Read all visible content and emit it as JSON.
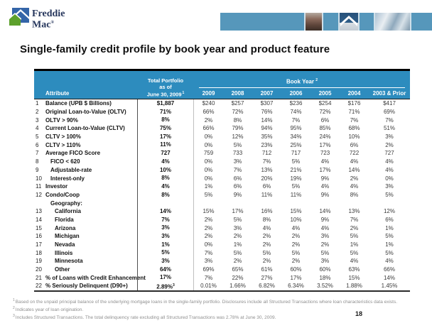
{
  "logo": {
    "line1": "Freddie",
    "line2": "Mac",
    "reg": "®"
  },
  "title": "Single-family credit profile by book year and product feature",
  "colors": {
    "table_header_blue": "#2d8cbe",
    "banner_blue": "#5697bb",
    "logo_blue": "#3465a8",
    "logo_green": "#5da02c"
  },
  "table": {
    "attribute_header": "Attribute",
    "portfolio_header_lines": [
      "Total Portfolio",
      "as of",
      "June 30, 2009"
    ],
    "portfolio_header_sup": "1",
    "book_year_label": "Book Year",
    "book_year_sup": "2",
    "year_columns": [
      "2009",
      "2008",
      "2007",
      "2006",
      "2005",
      "2004",
      "2003 & Prior"
    ],
    "rows": [
      {
        "num": "1",
        "label": "Balance (UPB $ Billions)",
        "indent": 0,
        "portfolio": "$1,887",
        "sup": "",
        "values": [
          "$240",
          "$257",
          "$307",
          "$236",
          "$254",
          "$176",
          "$417"
        ]
      },
      {
        "num": "2",
        "label": "Original Loan-to-Value (OLTV)",
        "indent": 0,
        "portfolio": "71%",
        "sup": "",
        "values": [
          "66%",
          "72%",
          "76%",
          "74%",
          "72%",
          "71%",
          "69%"
        ]
      },
      {
        "num": "3",
        "label": "OLTV > 90%",
        "indent": 0,
        "portfolio": "8%",
        "sup": "",
        "values": [
          "2%",
          "8%",
          "14%",
          "7%",
          "6%",
          "7%",
          "7%"
        ]
      },
      {
        "num": "4",
        "label": "Current Loan-to-Value (CLTV)",
        "indent": 0,
        "portfolio": "75%",
        "sup": "",
        "values": [
          "66%",
          "79%",
          "94%",
          "95%",
          "85%",
          "68%",
          "51%"
        ]
      },
      {
        "num": "5",
        "label": "CLTV > 100%",
        "indent": 0,
        "portfolio": "17%",
        "sup": "",
        "values": [
          "0%",
          "12%",
          "35%",
          "34%",
          "24%",
          "10%",
          "3%"
        ]
      },
      {
        "num": "6",
        "label": "CLTV > 110%",
        "indent": 0,
        "portfolio": "11%",
        "sup": "",
        "values": [
          "0%",
          "5%",
          "23%",
          "25%",
          "17%",
          "6%",
          "2%"
        ]
      },
      {
        "num": "7",
        "label": "Average FICO Score",
        "indent": 0,
        "portfolio": "727",
        "sup": "",
        "values": [
          "759",
          "733",
          "712",
          "717",
          "723",
          "722",
          "727"
        ]
      },
      {
        "num": "8",
        "label": "FICO < 620",
        "indent": 1,
        "portfolio": "4%",
        "sup": "",
        "values": [
          "0%",
          "3%",
          "7%",
          "5%",
          "4%",
          "4%",
          "4%"
        ]
      },
      {
        "num": "9",
        "label": "Adjustable-rate",
        "indent": 1,
        "portfolio": "10%",
        "sup": "",
        "values": [
          "0%",
          "7%",
          "13%",
          "21%",
          "17%",
          "14%",
          "4%"
        ]
      },
      {
        "num": "10",
        "label": "Interest-only",
        "indent": 1,
        "portfolio": "8%",
        "sup": "",
        "values": [
          "0%",
          "6%",
          "20%",
          "19%",
          "9%",
          "2%",
          "0%"
        ]
      },
      {
        "num": "11",
        "label": "Investor",
        "indent": 0,
        "portfolio": "4%",
        "sup": "",
        "values": [
          "1%",
          "6%",
          "6%",
          "5%",
          "4%",
          "4%",
          "3%"
        ]
      },
      {
        "num": "12",
        "label": "Condo/Coop",
        "indent": 0,
        "portfolio": "8%",
        "sup": "",
        "values": [
          "5%",
          "9%",
          "11%",
          "11%",
          "9%",
          "8%",
          "5%"
        ]
      },
      {
        "num": "",
        "label": "Geography:",
        "indent": 1,
        "portfolio": "",
        "sup": "",
        "values": [
          "",
          "",
          "",
          "",
          "",
          "",
          ""
        ]
      },
      {
        "num": "13",
        "label": "California",
        "indent": 2,
        "portfolio": "14%",
        "sup": "",
        "values": [
          "15%",
          "17%",
          "16%",
          "15%",
          "14%",
          "13%",
          "12%"
        ]
      },
      {
        "num": "14",
        "label": "Florida",
        "indent": 2,
        "portfolio": "7%",
        "sup": "",
        "values": [
          "2%",
          "5%",
          "8%",
          "10%",
          "9%",
          "7%",
          "6%"
        ]
      },
      {
        "num": "15",
        "label": "Arizona",
        "indent": 2,
        "portfolio": "3%",
        "sup": "",
        "values": [
          "2%",
          "3%",
          "4%",
          "4%",
          "4%",
          "2%",
          "1%"
        ]
      },
      {
        "num": "16",
        "label": "Michigan",
        "indent": 2,
        "portfolio": "3%",
        "sup": "",
        "values": [
          "2%",
          "2%",
          "2%",
          "2%",
          "3%",
          "5%",
          "5%"
        ]
      },
      {
        "num": "17",
        "label": "Nevada",
        "indent": 2,
        "portfolio": "1%",
        "sup": "",
        "values": [
          "0%",
          "1%",
          "2%",
          "2%",
          "2%",
          "1%",
          "1%"
        ]
      },
      {
        "num": "18",
        "label": "Illinois",
        "indent": 2,
        "portfolio": "5%",
        "sup": "",
        "values": [
          "7%",
          "5%",
          "5%",
          "5%",
          "5%",
          "5%",
          "5%"
        ]
      },
      {
        "num": "19",
        "label": "Minnesota",
        "indent": 2,
        "portfolio": "3%",
        "sup": "",
        "values": [
          "3%",
          "2%",
          "2%",
          "2%",
          "3%",
          "4%",
          "4%"
        ]
      },
      {
        "num": "20",
        "label": "Other",
        "indent": 2,
        "portfolio": "64%",
        "sup": "",
        "values": [
          "69%",
          "65%",
          "61%",
          "60%",
          "60%",
          "63%",
          "66%"
        ]
      },
      {
        "num": "21",
        "label": "% of Loans with Credit Enhancement",
        "indent": 0,
        "portfolio": "17%",
        "sup": "",
        "values": [
          "7%",
          "22%",
          "27%",
          "17%",
          "18%",
          "15%",
          "14%"
        ]
      },
      {
        "num": "22",
        "label": "% Seriously Delinquent (D90+)",
        "indent": 0,
        "portfolio": "2.89%",
        "sup": "3",
        "values": [
          "0.01%",
          "1.66%",
          "6.82%",
          "6.34%",
          "3.52%",
          "1.88%",
          "1.45%"
        ]
      }
    ]
  },
  "footnotes": [
    {
      "sup": "1",
      "text": "Based on the unpaid principal balance of the underlying mortgage loans in the single-family portfolio. Disclosures include all Structured Transactions where loan characteristics data exists."
    },
    {
      "sup": "2",
      "text": "Indicates year of loan origination."
    },
    {
      "sup": "3",
      "text": "Includes Structured Transactions.  The total delinquency rate excluding all Structured Transactions was 2.78% at June 30, 2009."
    }
  ],
  "page_number": "18"
}
